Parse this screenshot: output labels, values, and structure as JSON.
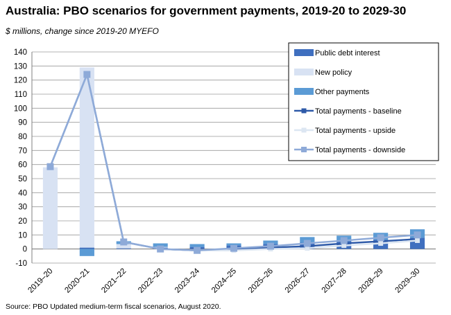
{
  "title": "Australia: PBO scenarios for government payments, 2019-20 to 2029-30",
  "subtitle": "$ millions, change since 2019-20  MYEFO",
  "source": "Source: PBO Updated medium-term fiscal scenarios, August 2020.",
  "colors": {
    "public_debt_interest": "#3f6fbf",
    "new_policy": "#d8e2f3",
    "other_payments": "#5b9bd5",
    "baseline": "#2e5aa8",
    "upside": "#dce6f2",
    "downside": "#8eaad8"
  },
  "chart_data": {
    "type": "bar",
    "stacked": true,
    "categories": [
      "2019–20",
      "2020–21",
      "2021–22",
      "2022–23",
      "2023–24",
      "2024–25",
      "2025–26",
      "2026–27",
      "2027–28",
      "2028–29",
      "2029–30"
    ],
    "ylim": [
      -10,
      140
    ],
    "yticks": [
      -10,
      0,
      10,
      20,
      30,
      40,
      50,
      60,
      70,
      80,
      90,
      100,
      110,
      120,
      130,
      140
    ],
    "grid": true,
    "legend_position": "top-right",
    "bar_series": [
      {
        "name": "Public debt interest",
        "values": [
          0,
          1,
          0.5,
          1,
          1.5,
          2.5,
          3.5,
          4.5,
          5.5,
          6.5,
          8
        ]
      },
      {
        "name": "New policy",
        "values": [
          58,
          128,
          3,
          0.5,
          0,
          0,
          0,
          0,
          0,
          0,
          0
        ]
      },
      {
        "name": "Other payments",
        "values": [
          0,
          -5,
          2,
          2.5,
          2,
          1.5,
          2.5,
          4,
          4,
          5,
          6
        ]
      }
    ],
    "line_series": [
      {
        "name": "Total payments - baseline",
        "values": [
          58.5,
          124,
          5,
          0,
          -1,
          0,
          1,
          2,
          4,
          5.5,
          7
        ]
      },
      {
        "name": "Total payments - upside",
        "values": [
          58.5,
          124,
          5,
          0,
          -1,
          -1,
          0,
          0.5,
          2.5,
          4,
          6
        ]
      },
      {
        "name": "Total payments - downside",
        "values": [
          58.5,
          124,
          5,
          0,
          -1,
          0.5,
          2,
          4,
          6,
          8,
          10
        ]
      }
    ]
  }
}
